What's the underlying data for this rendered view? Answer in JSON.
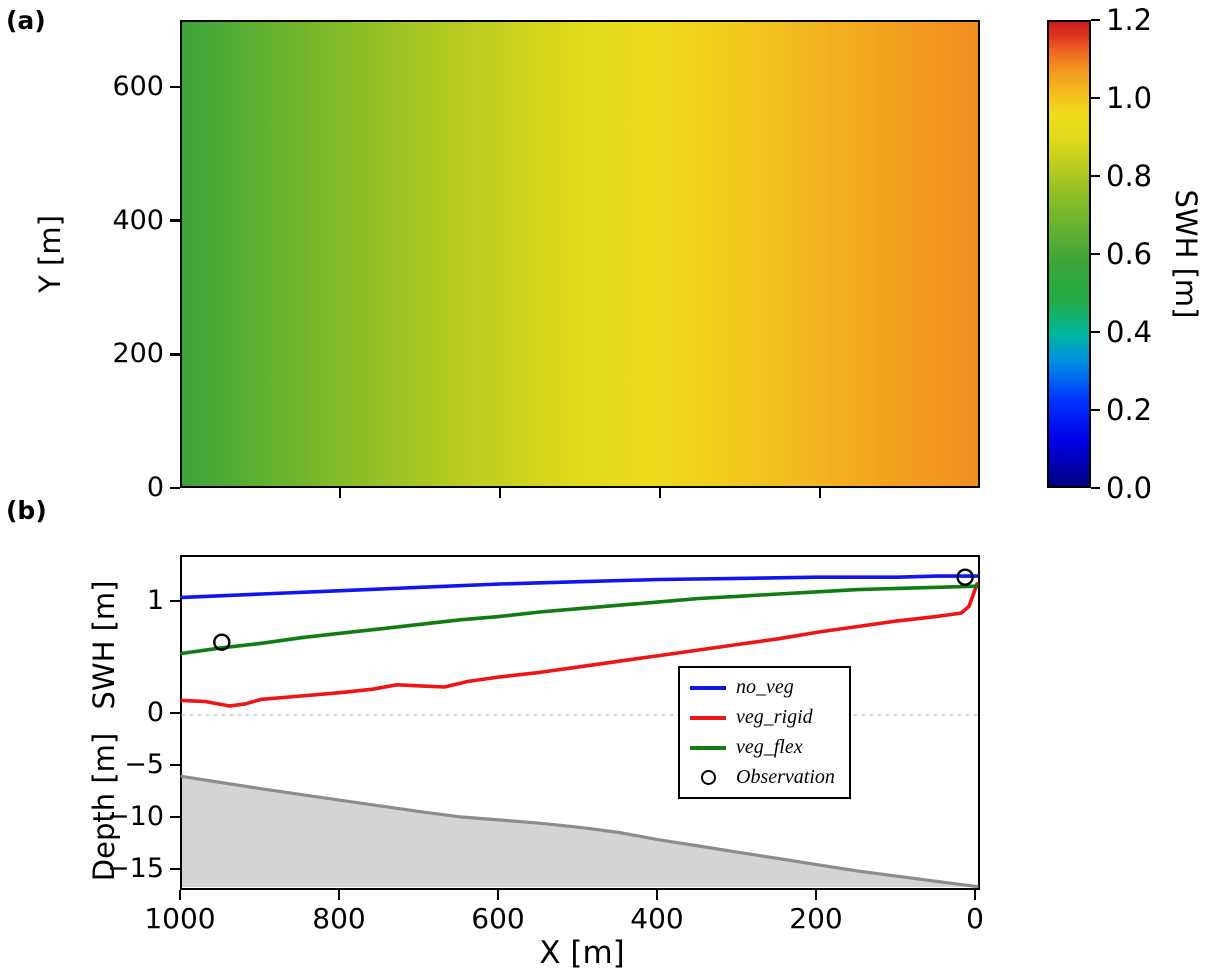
{
  "figure": {
    "panel_a_label": "(a)",
    "panel_b_label": "(b)"
  },
  "chart_data": [
    {
      "type": "heatmap",
      "panel": "a",
      "ylabel": "Y [m]",
      "x_range": [
        1000,
        0
      ],
      "y_range": [
        0,
        700
      ],
      "y_ticks": [
        {
          "value": 600,
          "label": "600"
        },
        {
          "value": 400,
          "label": "400"
        },
        {
          "value": 200,
          "label": "200"
        },
        {
          "value": 0,
          "label": "0"
        }
      ],
      "x_minor_ticks": [
        800,
        600,
        400,
        200
      ],
      "field_description": "Significant wave height field, nearly uniform in Y, increasing from about 0.6 m at X=1000 m (green) to about 1.0 m at X=0 m (orange)",
      "x_gradient": [
        {
          "x": 1000,
          "swh": 0.58,
          "color": "#3ba43a"
        },
        {
          "x": 900,
          "swh": 0.63,
          "color": "#5fb02f"
        },
        {
          "x": 800,
          "swh": 0.68,
          "color": "#85bb28"
        },
        {
          "x": 700,
          "swh": 0.73,
          "color": "#a8c622"
        },
        {
          "x": 600,
          "swh": 0.78,
          "color": "#c6d01e"
        },
        {
          "x": 500,
          "swh": 0.82,
          "color": "#e0da1b"
        },
        {
          "x": 400,
          "swh": 0.86,
          "color": "#eed91a"
        },
        {
          "x": 300,
          "swh": 0.9,
          "color": "#f2c91d"
        },
        {
          "x": 200,
          "swh": 0.94,
          "color": "#f3b31e"
        },
        {
          "x": 100,
          "swh": 0.97,
          "color": "#f3a01f"
        },
        {
          "x": 0,
          "swh": 1.0,
          "color": "#f28e20"
        }
      ],
      "colorbar": {
        "label": "SWH [m]",
        "range": [
          0.0,
          1.2
        ],
        "ticks": [
          {
            "value": 1.2,
            "label": "1.2"
          },
          {
            "value": 1.0,
            "label": "1.0"
          },
          {
            "value": 0.8,
            "label": "0.8"
          },
          {
            "value": 0.6,
            "label": "0.6"
          },
          {
            "value": 0.4,
            "label": "0.4"
          },
          {
            "value": 0.2,
            "label": "0.2"
          },
          {
            "value": 0.0,
            "label": "0.0"
          }
        ],
        "colormap_stops": [
          {
            "pos": 0.0,
            "color": "#00007f"
          },
          {
            "pos": 0.1,
            "color": "#0000e8"
          },
          {
            "pos": 0.18,
            "color": "#0032ff"
          },
          {
            "pos": 0.27,
            "color": "#0090e0"
          },
          {
            "pos": 0.33,
            "color": "#00b89a"
          },
          {
            "pos": 0.4,
            "color": "#22ab44"
          },
          {
            "pos": 0.48,
            "color": "#3ba43a"
          },
          {
            "pos": 0.57,
            "color": "#6cb42c"
          },
          {
            "pos": 0.66,
            "color": "#a6c522"
          },
          {
            "pos": 0.74,
            "color": "#dcd91b"
          },
          {
            "pos": 0.8,
            "color": "#f0dc1a"
          },
          {
            "pos": 0.85,
            "color": "#f3bb1d"
          },
          {
            "pos": 0.9,
            "color": "#f2951f"
          },
          {
            "pos": 0.94,
            "color": "#ec6022"
          },
          {
            "pos": 0.97,
            "color": "#dd3520"
          },
          {
            "pos": 1.0,
            "color": "#c81e1e"
          }
        ]
      }
    },
    {
      "type": "line",
      "panel": "b",
      "xlabel": "X [m]",
      "ylabel_upper": "SWH [m]",
      "ylabel_lower": "Depth [m]",
      "x_range": [
        1000,
        0
      ],
      "x_ticks": [
        {
          "value": 1000,
          "label": "1000"
        },
        {
          "value": 800,
          "label": "800"
        },
        {
          "value": 600,
          "label": "600"
        },
        {
          "value": 400,
          "label": "400"
        },
        {
          "value": 200,
          "label": "200"
        },
        {
          "value": 0,
          "label": "0"
        }
      ],
      "y_ticks_upper": [
        {
          "value": 1,
          "label": "1"
        },
        {
          "value": 0,
          "label": "0"
        }
      ],
      "y_ticks_lower": [
        {
          "value": -5,
          "label": "−5"
        },
        {
          "value": -10,
          "label": "−10"
        },
        {
          "value": -15,
          "label": "−15"
        }
      ],
      "zero_line": {
        "style": "dashed",
        "color": "#c9c9c9"
      },
      "series": [
        {
          "name": "no_veg",
          "color": "#1016ef",
          "x": [
            1000,
            900,
            800,
            700,
            600,
            500,
            400,
            300,
            200,
            100,
            50,
            0
          ],
          "y": [
            1.05,
            1.08,
            1.11,
            1.14,
            1.17,
            1.19,
            1.21,
            1.22,
            1.23,
            1.23,
            1.24,
            1.24
          ]
        },
        {
          "name": "veg_rigid",
          "color": "#f01414",
          "x": [
            1000,
            970,
            940,
            920,
            900,
            850,
            800,
            760,
            730,
            700,
            670,
            640,
            600,
            550,
            500,
            450,
            400,
            350,
            300,
            250,
            200,
            150,
            100,
            50,
            20,
            10,
            0
          ],
          "y": [
            0.13,
            0.12,
            0.08,
            0.1,
            0.14,
            0.17,
            0.2,
            0.23,
            0.27,
            0.26,
            0.25,
            0.3,
            0.34,
            0.38,
            0.43,
            0.48,
            0.53,
            0.58,
            0.63,
            0.68,
            0.74,
            0.79,
            0.84,
            0.88,
            0.91,
            0.97,
            1.17
          ]
        },
        {
          "name": "veg_flex",
          "color": "#107c12",
          "x": [
            1000,
            950,
            900,
            850,
            800,
            750,
            700,
            650,
            600,
            550,
            500,
            450,
            400,
            350,
            300,
            250,
            200,
            150,
            100,
            50,
            0
          ],
          "y": [
            0.55,
            0.6,
            0.64,
            0.69,
            0.73,
            0.77,
            0.81,
            0.85,
            0.88,
            0.92,
            0.95,
            0.98,
            1.01,
            1.04,
            1.06,
            1.08,
            1.1,
            1.12,
            1.13,
            1.14,
            1.15
          ]
        }
      ],
      "observations": {
        "name": "Observation",
        "marker": "open-circle",
        "color": "#000000",
        "points": [
          {
            "x": 950,
            "y": 0.65
          },
          {
            "x": 15,
            "y": 1.23
          }
        ]
      },
      "depth_profile": {
        "fill_color": "#d4d4d4",
        "line_color": "#8c8c8c",
        "x": [
          1000,
          900,
          800,
          700,
          650,
          600,
          550,
          500,
          450,
          400,
          350,
          300,
          250,
          200,
          150,
          100,
          50,
          0
        ],
        "depth": [
          -5.9,
          -7.1,
          -8.2,
          -9.3,
          -9.8,
          -10.1,
          -10.4,
          -10.8,
          -11.3,
          -12.0,
          -12.6,
          -13.2,
          -13.8,
          -14.4,
          -15.0,
          -15.5,
          -16.0,
          -16.5
        ]
      },
      "legend": {
        "position": "center-right",
        "entries": [
          {
            "label": "no_veg",
            "sample": "line"
          },
          {
            "label": "veg_rigid",
            "sample": "line"
          },
          {
            "label": "veg_flex",
            "sample": "line"
          },
          {
            "label": "Observation",
            "sample": "open-circle"
          }
        ]
      }
    }
  ]
}
